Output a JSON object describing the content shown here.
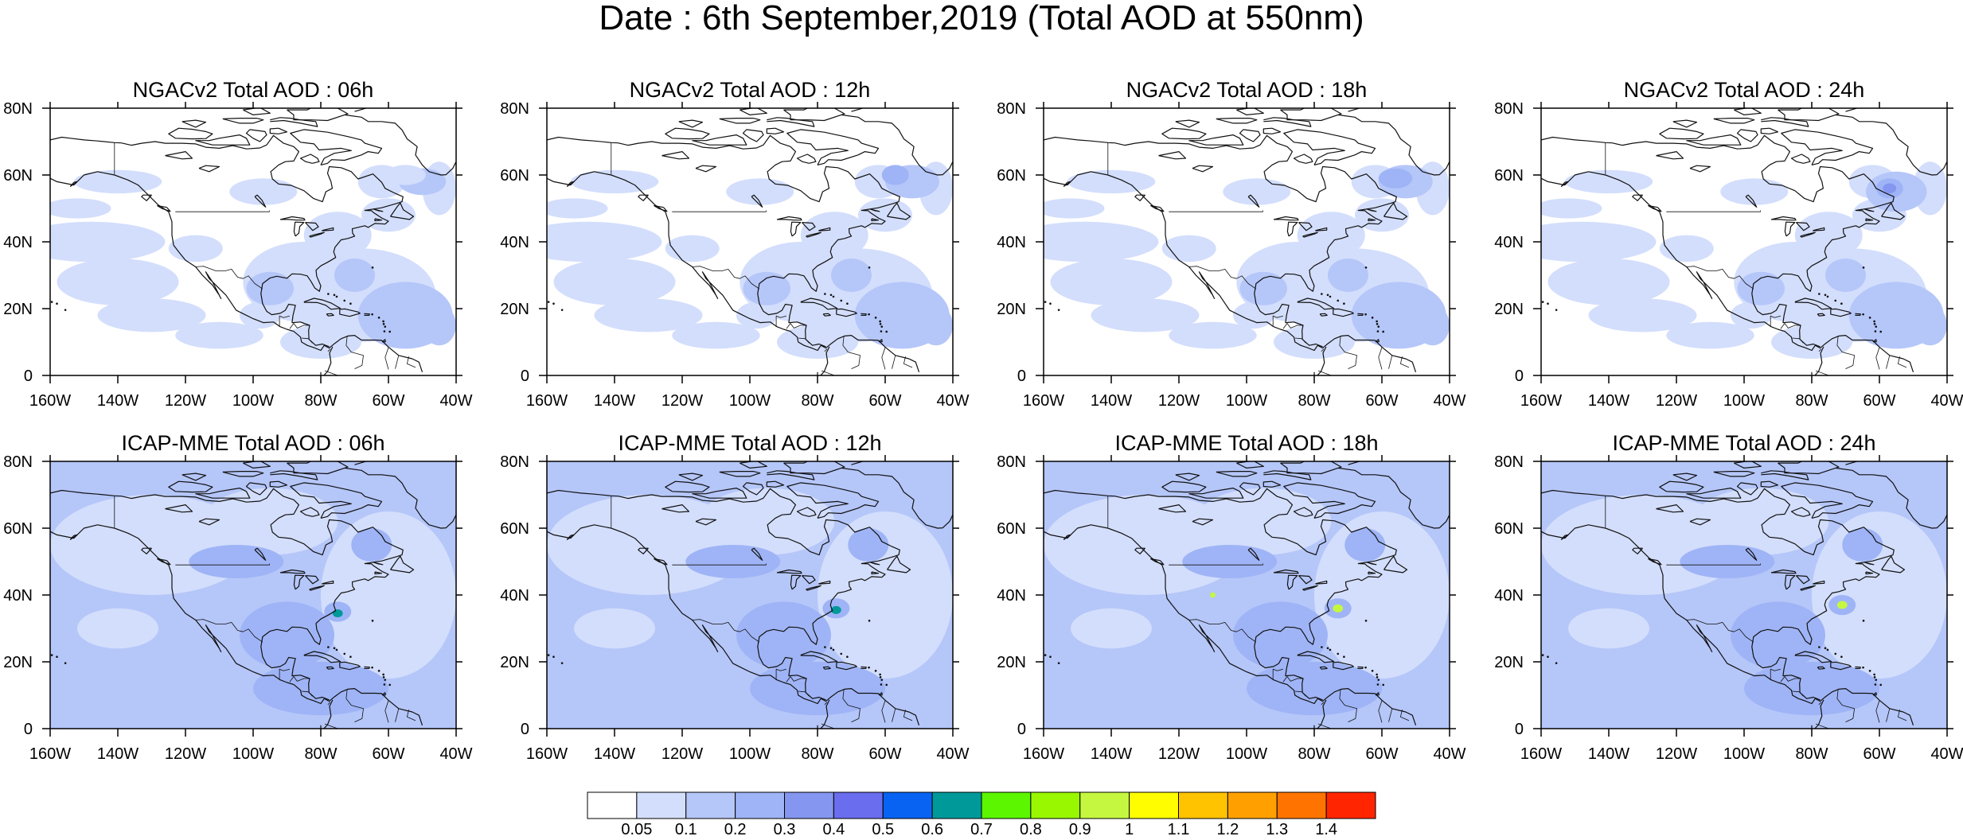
{
  "page": {
    "title": "Date : 6th September,2019 (Total AOD at 550nm)"
  },
  "panels": [
    {
      "id": "ngac-06",
      "title": "NGACv2 Total AOD : 06h",
      "model": "NGACv2",
      "hour": "06h"
    },
    {
      "id": "ngac-12",
      "title": "NGACv2 Total AOD : 12h",
      "model": "NGACv2",
      "hour": "12h"
    },
    {
      "id": "ngac-18",
      "title": "NGACv2 Total AOD : 18h",
      "model": "NGACv2",
      "hour": "18h"
    },
    {
      "id": "ngac-24",
      "title": "NGACv2 Total AOD : 24h",
      "model": "NGACv2",
      "hour": "24h"
    },
    {
      "id": "icap-06",
      "title": "ICAP-MME Total AOD : 06h",
      "model": "ICAP-MME",
      "hour": "06h"
    },
    {
      "id": "icap-12",
      "title": "ICAP-MME Total AOD : 12h",
      "model": "ICAP-MME",
      "hour": "12h"
    },
    {
      "id": "icap-18",
      "title": "ICAP-MME Total AOD : 18h",
      "model": "ICAP-MME",
      "hour": "18h"
    },
    {
      "id": "icap-24",
      "title": "ICAP-MME Total AOD : 24h",
      "model": "ICAP-MME",
      "hour": "24h"
    }
  ],
  "map_extent": {
    "lon_min": -160,
    "lon_max": -40,
    "lat_min": 0,
    "lat_max": 80
  },
  "axes": {
    "lat_ticks": [
      "80N",
      "60N",
      "40N",
      "20N",
      "0"
    ],
    "lon_ticks": [
      "160W",
      "140W",
      "120W",
      "100W",
      "80W",
      "60W",
      "40W"
    ]
  },
  "colorbar": {
    "colors": [
      "#ffffff",
      "#d3defc",
      "#b5c6f9",
      "#9fb4f6",
      "#8596f0",
      "#6a6ded",
      "#0863f2",
      "#00999a",
      "#5bf600",
      "#99f700",
      "#c5f740",
      "#fffd00",
      "#ffc300",
      "#ffa000",
      "#ff7400",
      "#ff2500"
    ],
    "labels": [
      "0.05",
      "0.1",
      "0.2",
      "0.3",
      "0.4",
      "0.5",
      "0.6",
      "0.7",
      "0.8",
      "0.9",
      "1",
      "1.1",
      "1.2",
      "1.3",
      "1.4"
    ]
  }
}
